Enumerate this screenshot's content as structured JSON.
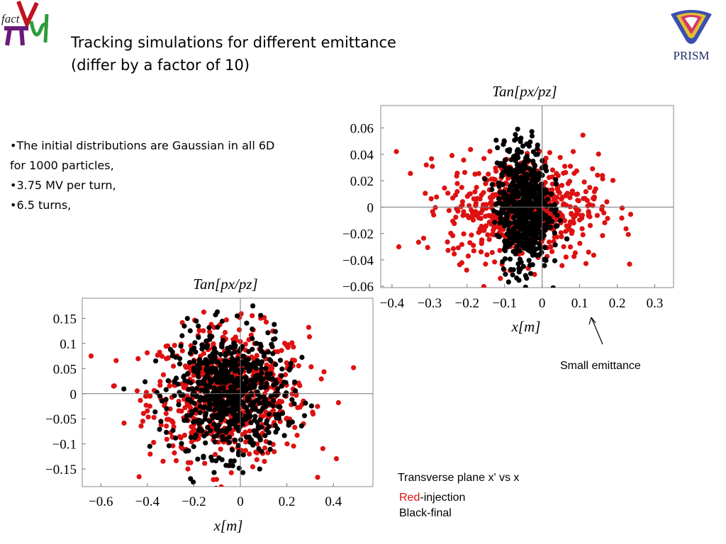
{
  "title_line1": "Tracking simulations for different emittance",
  "title_line2": "(differ by a factor of 10)",
  "bullets": [
    "•The initial distributions are Gaussian in all 6D",
    "for 1000 particles,",
    "•3.75 MV per turn,",
    "•6.5 turns,"
  ],
  "logo_left_text": "fact",
  "logo_right_text": "PRISM",
  "annotations": {
    "small_emittance": "Small emittance",
    "transverse": "Transverse plane x' vs x",
    "red_word": "Red",
    "red_rest": "-injection",
    "black_final": "Black-final"
  },
  "colors": {
    "injection": "#dd1111",
    "final": "#000000"
  },
  "chart_data": [
    {
      "type": "scatter",
      "title": "Tan[px/pz]",
      "xlabel": "x[m]",
      "ylabel": "Tan[px/pz]",
      "xlim": [
        -0.43,
        0.35
      ],
      "ylim": [
        -0.061,
        0.077
      ],
      "xticks": [
        -0.4,
        -0.3,
        -0.2,
        -0.1,
        0,
        0.1,
        0.2,
        0.3
      ],
      "xtick_labels": [
        "−0.4",
        "−0.3",
        "−0.2",
        "−0.1",
        "0",
        "0.1",
        "0.2",
        "0.3"
      ],
      "yticks": [
        0.06,
        0.04,
        0.02,
        0,
        -0.02,
        -0.04,
        -0.06
      ],
      "ytick_labels": [
        "0.06",
        "0.04",
        "0.02",
        "0",
        "−0.02",
        "−0.04",
        "−0.06"
      ],
      "series": [
        {
          "name": "Red",
          "color": "#dd1111",
          "distribution": {
            "mean_x": -0.05,
            "std_x": 0.1,
            "mean_y": 0.0,
            "std_y": 0.02,
            "count": 650
          }
        },
        {
          "name": "Black",
          "color": "#000000",
          "distribution": {
            "mean_x": -0.05,
            "std_x": 0.035,
            "mean_y": 0.0,
            "std_y": 0.024,
            "count": 650
          }
        }
      ]
    },
    {
      "type": "scatter",
      "title": "Tan[px/pz]",
      "xlabel": "x[m]",
      "ylabel": "Tan[px/pz]",
      "xlim": [
        -0.68,
        0.57
      ],
      "ylim": [
        -0.185,
        0.19
      ],
      "xticks": [
        -0.6,
        -0.4,
        -0.2,
        0,
        0.2,
        0.4
      ],
      "xtick_labels": [
        "−0.6",
        "−0.4",
        "−0.2",
        "0",
        "0.2",
        "0.4"
      ],
      "yticks": [
        0.15,
        0.1,
        0.05,
        0,
        -0.05,
        -0.1,
        -0.15
      ],
      "ytick_labels": [
        "0.15",
        "0.1",
        "0.05",
        "0",
        "−0.05",
        "−0.1",
        "−0.15"
      ],
      "series": [
        {
          "name": "Red",
          "color": "#dd1111",
          "distribution": {
            "mean_x": -0.05,
            "std_x": 0.17,
            "mean_y": 0.0,
            "std_y": 0.065,
            "count": 700
          }
        },
        {
          "name": "Black",
          "color": "#000000",
          "distribution": {
            "mean_x": -0.05,
            "std_x": 0.12,
            "mean_y": 0.0,
            "std_y": 0.06,
            "count": 700
          }
        }
      ]
    }
  ]
}
